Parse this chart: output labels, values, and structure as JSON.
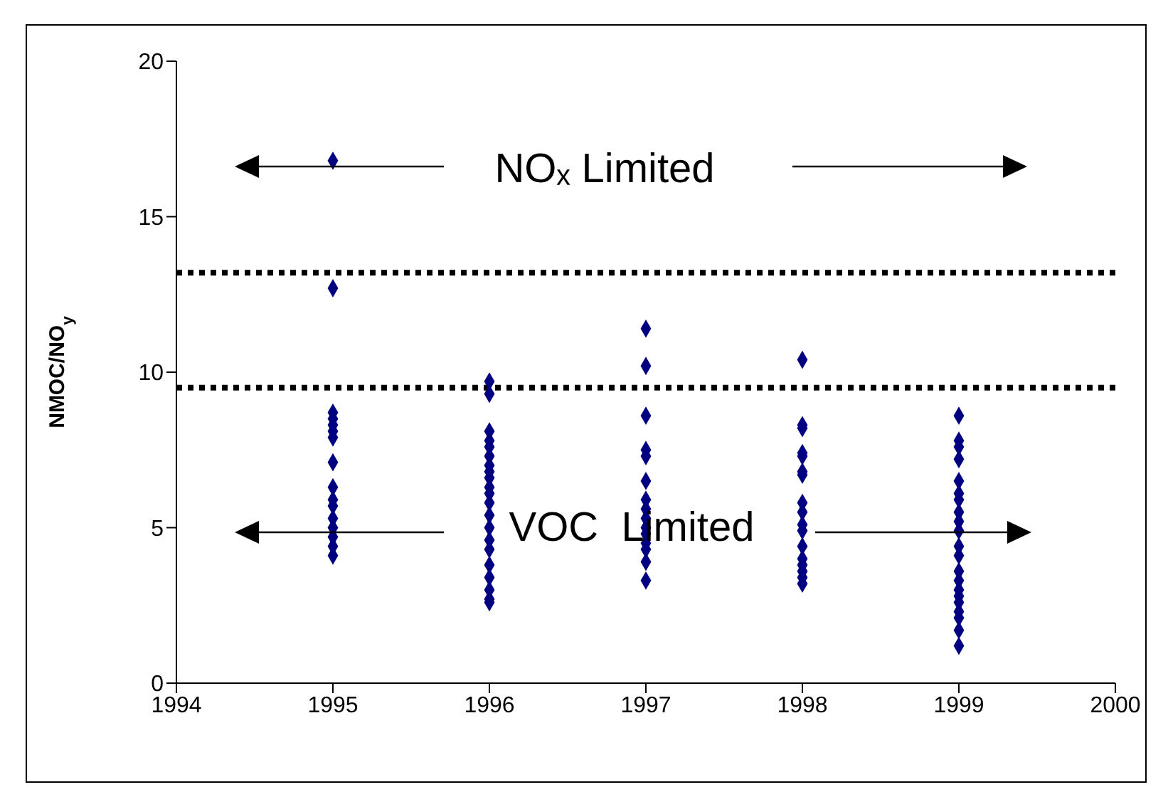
{
  "chart_data": {
    "type": "scatter",
    "ylabel": "NMOC/NO$_{y}$",
    "annotations": [
      "NOₓ Limited",
      "VOC  Limited"
    ],
    "xlim": [
      1994,
      2000
    ],
    "xticks": [
      1994,
      1995,
      1996,
      1997,
      1998,
      1999,
      2000
    ],
    "ylim": [
      0,
      20
    ],
    "yticks": [
      0,
      5,
      10,
      15,
      20
    ],
    "marker": "diamond",
    "ref_lines": [
      {
        "axis": "y",
        "value": 13.2,
        "line_style": "dotted",
        "color": "#000000"
      },
      {
        "axis": "y",
        "value": 9.5,
        "line_style": "dotted",
        "color": "#000000"
      }
    ],
    "series": [
      {
        "color": "#000080",
        "x": [
          1995,
          1995,
          1995,
          1995,
          1995,
          1995,
          1995,
          1995,
          1995,
          1995,
          1995,
          1995,
          1995,
          1995,
          1995,
          1995,
          1996,
          1996,
          1996,
          1996,
          1996,
          1996,
          1996,
          1996,
          1996,
          1996,
          1996,
          1996,
          1996,
          1996,
          1996,
          1996,
          1996,
          1996,
          1996,
          1996,
          1996,
          1997,
          1997,
          1997,
          1997,
          1997,
          1997,
          1997,
          1997,
          1997,
          1997,
          1997,
          1997,
          1997,
          1997,
          1997,
          1998,
          1998,
          1998,
          1998,
          1998,
          1998,
          1998,
          1998,
          1998,
          1998,
          1998,
          1998,
          1998,
          1998,
          1998,
          1998,
          1998,
          1999,
          1999,
          1999,
          1999,
          1999,
          1999,
          1999,
          1999,
          1999,
          1999,
          1999,
          1999,
          1999,
          1999,
          1999,
          1999,
          1999,
          1999,
          1999,
          1999,
          1999
        ],
        "values": [
          16.8,
          12.7,
          8.7,
          8.5,
          8.3,
          8.1,
          7.9,
          7.1,
          6.3,
          5.9,
          5.7,
          5.3,
          5.0,
          4.7,
          4.4,
          4.1,
          9.7,
          9.3,
          8.1,
          7.8,
          7.6,
          7.3,
          7.0,
          6.8,
          6.6,
          6.3,
          6.1,
          5.8,
          5.4,
          5.0,
          4.6,
          4.3,
          3.8,
          3.4,
          3.0,
          2.7,
          2.6,
          11.4,
          10.2,
          8.6,
          7.5,
          7.3,
          6.5,
          5.9,
          5.6,
          5.3,
          5.0,
          4.8,
          4.5,
          4.3,
          3.9,
          3.3,
          10.4,
          8.3,
          8.2,
          7.4,
          7.3,
          6.8,
          6.7,
          5.8,
          5.5,
          5.1,
          4.9,
          4.4,
          4.0,
          3.8,
          3.6,
          3.4,
          3.2,
          8.6,
          7.8,
          7.6,
          7.2,
          6.5,
          6.1,
          5.9,
          5.5,
          5.2,
          4.9,
          4.4,
          4.1,
          3.6,
          3.3,
          3.0,
          2.8,
          2.6,
          2.3,
          2.1,
          1.7,
          1.2
        ]
      }
    ]
  }
}
